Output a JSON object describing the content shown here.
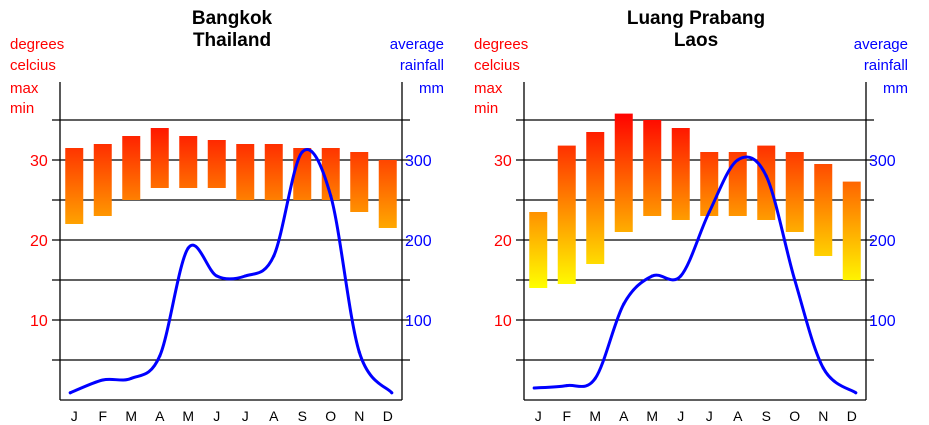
{
  "colors": {
    "temperature_text": "#ff0000",
    "rainfall_line": "#0000ff",
    "bar_top": "#ff0000",
    "bar_bottom": "#ffff00",
    "gridline": "#000000"
  },
  "labels": {
    "temp_line1": "degrees",
    "temp_line2": "celcius",
    "temp_line3": "max",
    "temp_line4": "min",
    "rain_line1": "average",
    "rain_line2": "rainfall",
    "rain_line3": "mm"
  },
  "chart_data": [
    {
      "type": "bar",
      "title_line1": "Bangkok",
      "title_line2": "Thailand",
      "categories": [
        "J",
        "F",
        "M",
        "A",
        "M",
        "J",
        "J",
        "A",
        "S",
        "O",
        "N",
        "D"
      ],
      "temp_ylim": [
        0,
        35
      ],
      "temp_ticks": [
        "10",
        "20",
        "30"
      ],
      "rain_ylim": [
        0,
        350
      ],
      "rain_ticks": [
        "100",
        "200",
        "300"
      ],
      "grid": true,
      "series": [
        {
          "name": "max",
          "values": [
            31.5,
            32,
            33,
            34,
            33,
            32.5,
            32,
            32,
            31.5,
            31.5,
            31,
            30
          ]
        },
        {
          "name": "min",
          "values": [
            22,
            23,
            25,
            26.5,
            26.5,
            26.5,
            25,
            25,
            25,
            25,
            23.5,
            21.5
          ]
        },
        {
          "name": "rainfall",
          "values": [
            9,
            25,
            27,
            55,
            190,
            155,
            155,
            180,
            310,
            255,
            60,
            9
          ]
        }
      ]
    },
    {
      "type": "bar",
      "title_line1": "Luang Prabang",
      "title_line2": "Laos",
      "categories": [
        "J",
        "F",
        "M",
        "A",
        "M",
        "J",
        "J",
        "A",
        "S",
        "O",
        "N",
        "D"
      ],
      "temp_ylim": [
        0,
        35
      ],
      "temp_ticks": [
        "10",
        "20",
        "30"
      ],
      "rain_ylim": [
        0,
        350
      ],
      "rain_ticks": [
        "100",
        "200",
        "300"
      ],
      "grid": true,
      "series": [
        {
          "name": "max",
          "values": [
            23.5,
            31.8,
            33.5,
            35.8,
            35,
            34,
            31,
            31,
            31.8,
            31,
            29.5,
            27.3
          ]
        },
        {
          "name": "min",
          "values": [
            14,
            14.5,
            17,
            21,
            23,
            22.5,
            23,
            23,
            22.5,
            21,
            18,
            15
          ]
        },
        {
          "name": "rainfall",
          "values": [
            15,
            18,
            27,
            120,
            155,
            155,
            235,
            300,
            280,
            150,
            40,
            9
          ]
        }
      ]
    }
  ]
}
